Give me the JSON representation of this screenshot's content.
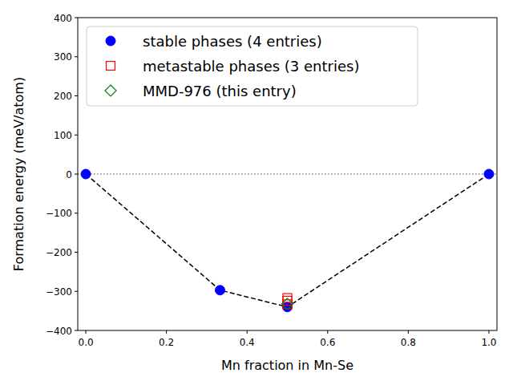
{
  "chart_data": {
    "type": "scatter",
    "x_label": "Mn fraction in Mn-Se",
    "y_label": "Formation energy (meV/atom)",
    "xlim": [
      -0.02,
      1.02
    ],
    "ylim": [
      -400,
      400
    ],
    "xticks": [
      {
        "value": 0,
        "label": "0.0"
      },
      {
        "value": 0.2,
        "label": "0.2"
      },
      {
        "value": 0.4,
        "label": "0.4"
      },
      {
        "value": 0.6,
        "label": "0.6"
      },
      {
        "value": 0.8,
        "label": "0.8"
      },
      {
        "value": 1,
        "label": "1.0"
      }
    ],
    "yticks": [
      {
        "value": -400,
        "label": "−400"
      },
      {
        "value": -300,
        "label": "−300"
      },
      {
        "value": -200,
        "label": "−200"
      },
      {
        "value": -100,
        "label": "−100"
      },
      0,
      100,
      200,
      300,
      400
    ],
    "hlines": [
      0
    ],
    "legend": "upper left",
    "grid": false,
    "series": [
      {
        "name": "stable phases (4 entries)",
        "color": "#0000ff",
        "marker": "circle",
        "line_style": "dashed",
        "x": [
          0,
          0.333,
          0.5,
          1
        ],
        "values": [
          0,
          -297,
          -340,
          0
        ]
      },
      {
        "name": "metastable phases (3 entries)",
        "color": "#ff0000",
        "marker": "square",
        "x": [
          0.5,
          0.5,
          0.5
        ],
        "values": [
          -317,
          -324,
          -333
        ]
      },
      {
        "name": "MMD-976 (this entry)",
        "color": "#008000",
        "marker": "diamond",
        "x": [
          0.5
        ],
        "values": [
          -332
        ]
      }
    ]
  }
}
